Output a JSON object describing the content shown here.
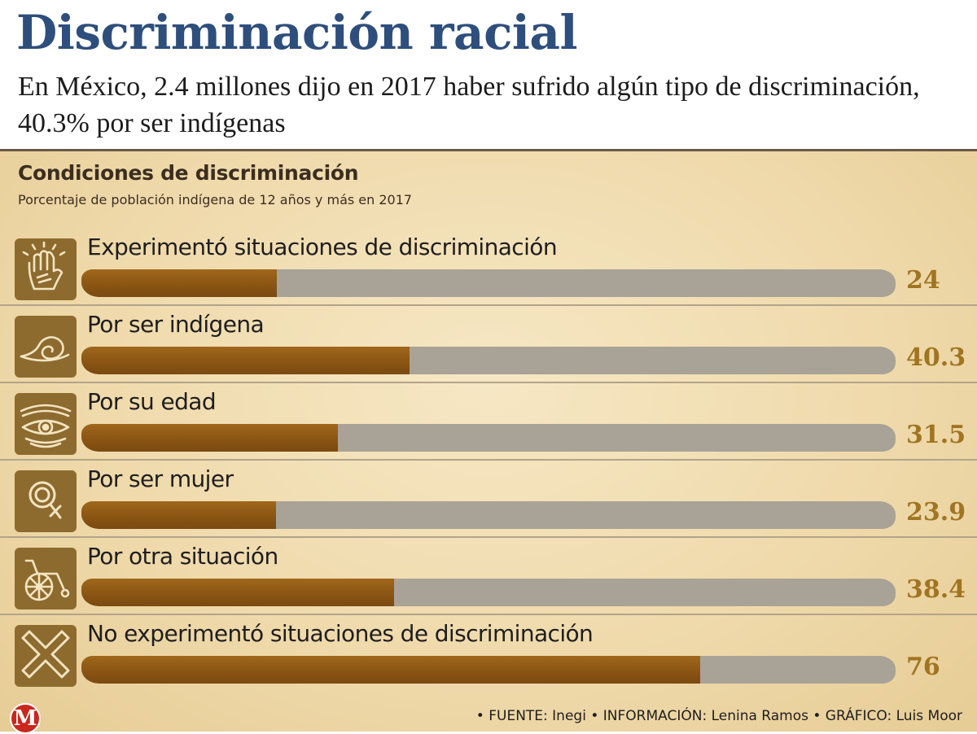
{
  "header": {
    "title": "Discriminación racial",
    "subtitle": "En México, 2.4 millones dijo en 2017 haber sufrido algún tipo de discriminación, 40.3% por ser indígenas"
  },
  "chart_data": {
    "type": "bar",
    "orientation": "horizontal",
    "title": "Condiciones de discriminación",
    "subtitle": "Porcentaje de población indígena de 12 años y más en 2017",
    "xlim": [
      0,
      100
    ],
    "grid": false,
    "legend": "none",
    "categories": [
      "Experimentó situaciones de discriminación",
      "Por ser indígena",
      "Por su edad",
      "Por ser mujer",
      "Por otra situación",
      "No experimentó situaciones de discriminación"
    ],
    "values": [
      24,
      40.3,
      31.5,
      23.9,
      38.4,
      76
    ],
    "value_labels": [
      "24",
      "40.3",
      "31.5",
      "23.9",
      "38.4",
      "76"
    ],
    "icons": [
      "raised-hand-icon",
      "speech-scroll-icon",
      "eye-wrinkle-icon",
      "female-symbol-icon",
      "wheelchair-icon",
      "cross-x-icon"
    ]
  },
  "colors": {
    "title": "#2e4e7c",
    "bar_fill": "#8b5513",
    "bar_track": "#a8a396",
    "value_text": "#a07421",
    "icon_bg": "#8d6b2e",
    "icon_stroke": "#f3e4c2",
    "panel_bg": "#f2dfb5",
    "logo": "#c8281e"
  },
  "footer": {
    "logo_letter": "M",
    "logo_icon": "milenio-logo-icon",
    "credits": "• FUENTE: Inegi • INFORMACIÓN: Lenina Ramos • GRÁFICO: Luis Moor"
  }
}
